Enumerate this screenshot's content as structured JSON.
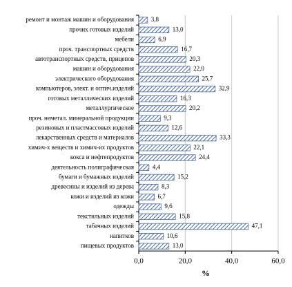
{
  "chart_data": {
    "type": "hbar",
    "categories": [
      "ремонт и монтаж машин и оборудования",
      "прочих готовых изделий",
      "мебели",
      "проч. транспортных средств",
      "автотранспортных средств, прицепов",
      "машин и оборудования",
      "электрического оборудования",
      "компьютеров, элект. и оптич.изделий",
      "готовых металлических изделий",
      "металлургическое",
      "проч. неметал. минеральной продукции",
      "резиновых и пластмассовых изделий",
      "лекарственных средств и материалов",
      "химич-х веществ и химич-их продуктов",
      "кокса и нефтепродуктов",
      "деятельность полиграфическая",
      "бумаги и бумажных изделий",
      "древесины и изделий из дерева",
      "кожи и  изделий из кожи",
      "одежды",
      "текстильных изделий",
      "табачных изделий",
      "напитков",
      "пищевых продуктов"
    ],
    "values": [
      3.8,
      13.0,
      6.9,
      16.7,
      20.3,
      22.0,
      25.7,
      32.9,
      16.3,
      20.2,
      9.3,
      12.6,
      33.3,
      22.1,
      24.4,
      4.4,
      15.2,
      8.3,
      6.7,
      9.6,
      15.8,
      47.1,
      10.6,
      13.0
    ],
    "value_labels": [
      "3,8",
      "13,0",
      "6,9",
      "16,7",
      "20,3",
      "22,0",
      "25,7",
      "32,9",
      "16,3",
      "20,2",
      "9,3",
      "12,6",
      "33,3",
      "22,1",
      "24,4",
      "4,4",
      "15,2",
      "8,3",
      "6,7",
      "9,6",
      "15,8",
      "47,1",
      "10,6",
      "13,0"
    ],
    "color": "#4a6aa5",
    "xlim": [
      0,
      60
    ],
    "xticks": [
      {
        "value": 0,
        "label": "0,0"
      },
      {
        "value": 20,
        "label": "20,0"
      },
      {
        "value": 40,
        "label": "40,0"
      },
      {
        "value": 60,
        "label": "60,0"
      }
    ],
    "xlabel": "%",
    "grid": true
  }
}
